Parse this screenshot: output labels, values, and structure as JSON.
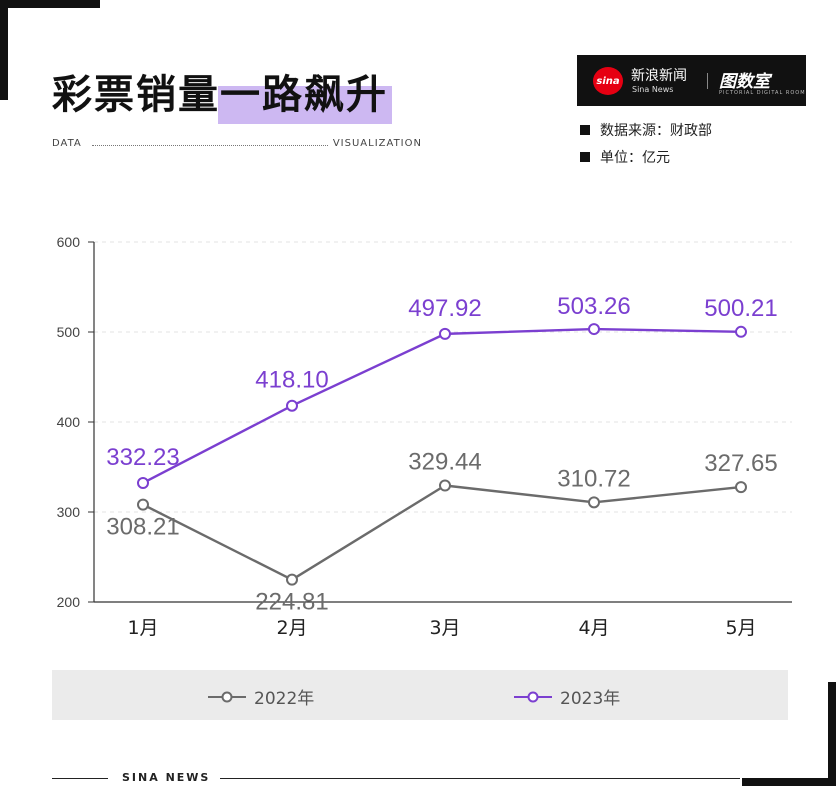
{
  "header": {
    "title_part1": "彩票销量",
    "title_part2": "一路飙升",
    "dv_left": "DATA",
    "dv_right": "VISUALIZATION"
  },
  "brand": {
    "logo": "sina",
    "name_cn": "新浪新闻",
    "name_en": "Sina News",
    "right": "图数室",
    "right_sub": "PICTORIAL DIGITAL ROOM"
  },
  "meta": {
    "source": "数据来源：财政部",
    "unit": "单位：亿元"
  },
  "footer": {
    "text": "SINA NEWS"
  },
  "colors": {
    "series_2022": "#6b6b6b",
    "series_2023": "#7b3fd0",
    "accent_highlight": "#cdb8f2"
  },
  "chart_data": {
    "type": "line",
    "categories": [
      "1月",
      "2月",
      "3月",
      "4月",
      "5月"
    ],
    "ylim": [
      200,
      600
    ],
    "yticks": [
      200,
      300,
      400,
      500,
      600
    ],
    "grid": true,
    "legend": "bottom",
    "series": [
      {
        "name": "2022年",
        "values": [
          308.21,
          224.81,
          329.44,
          310.72,
          327.65
        ],
        "color": "#6b6b6b"
      },
      {
        "name": "2023年",
        "values": [
          332.23,
          418.1,
          497.92,
          503.26,
          500.21
        ],
        "color": "#7b3fd0"
      }
    ]
  }
}
